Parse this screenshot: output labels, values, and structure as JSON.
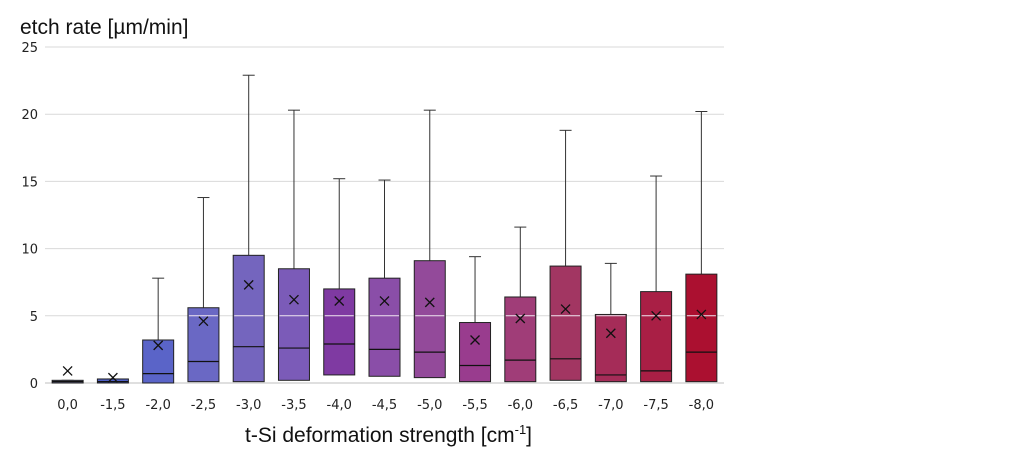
{
  "chart_data": {
    "type": "box",
    "ylabel": "etch rate [µm/min]",
    "xlabel": "t-Si deformation strength [cm",
    "xlabel_sup": "-1",
    "xlabel_end": "]",
    "ylim": [
      0,
      25
    ],
    "yticks": [
      "0",
      "5",
      "10",
      "15",
      "20",
      "25"
    ],
    "grid": true,
    "categories": [
      "0,0",
      "-1,5",
      "-2,0",
      "-2,5",
      "-3,0",
      "-3,5",
      "-4,0",
      "-4,5",
      "-5,0",
      "-5,5",
      "-6,0",
      "-6,5",
      "-7,0",
      "-7,5",
      "-8,0"
    ],
    "boxes": [
      {
        "min": 0,
        "q1": 0,
        "median": 0.1,
        "q3": 0.2,
        "max": 0.2,
        "mean": 0.9,
        "color": "#7d7fb0"
      },
      {
        "min": 0,
        "q1": 0,
        "median": 0.1,
        "q3": 0.3,
        "max": 0.3,
        "mean": 0.4,
        "color": "#4f5fc4"
      },
      {
        "min": 0,
        "q1": 0,
        "median": 0.7,
        "q3": 3.2,
        "max": 7.8,
        "mean": 2.8,
        "color": "#5a64c8"
      },
      {
        "min": 0,
        "q1": 0.1,
        "median": 1.6,
        "q3": 5.6,
        "max": 13.8,
        "mean": 4.6,
        "color": "#6a68c4"
      },
      {
        "min": 0,
        "q1": 0.1,
        "median": 2.7,
        "q3": 9.5,
        "max": 22.9,
        "mean": 7.3,
        "color": "#7465be"
      },
      {
        "min": 0,
        "q1": 0.2,
        "median": 2.6,
        "q3": 8.5,
        "max": 20.3,
        "mean": 6.2,
        "color": "#7b5bb8"
      },
      {
        "min": 0,
        "q1": 0.6,
        "median": 2.9,
        "q3": 7.0,
        "max": 15.2,
        "mean": 6.1,
        "color": "#7f3aa2"
      },
      {
        "min": 0,
        "q1": 0.5,
        "median": 2.5,
        "q3": 7.8,
        "max": 15.1,
        "mean": 6.1,
        "color": "#8a4ea8"
      },
      {
        "min": 0,
        "q1": 0.4,
        "median": 2.3,
        "q3": 9.1,
        "max": 20.3,
        "mean": 6.0,
        "color": "#934a9a"
      },
      {
        "min": 0,
        "q1": 0.1,
        "median": 1.3,
        "q3": 4.5,
        "max": 9.4,
        "mean": 3.2,
        "color": "#993c8e"
      },
      {
        "min": 0,
        "q1": 0.1,
        "median": 1.7,
        "q3": 6.4,
        "max": 11.6,
        "mean": 4.8,
        "color": "#a03d78"
      },
      {
        "min": 0,
        "q1": 0.2,
        "median": 1.8,
        "q3": 8.7,
        "max": 18.8,
        "mean": 5.5,
        "color": "#a23662"
      },
      {
        "min": 0,
        "q1": 0.1,
        "median": 0.6,
        "q3": 5.1,
        "max": 8.9,
        "mean": 3.7,
        "color": "#a52c58"
      },
      {
        "min": 0,
        "q1": 0.1,
        "median": 0.9,
        "q3": 6.8,
        "max": 15.4,
        "mean": 5.0,
        "color": "#a91f45"
      },
      {
        "min": 0,
        "q1": 0.1,
        "median": 2.3,
        "q3": 8.1,
        "max": 20.2,
        "mean": 5.1,
        "color": "#ab1030"
      }
    ]
  }
}
